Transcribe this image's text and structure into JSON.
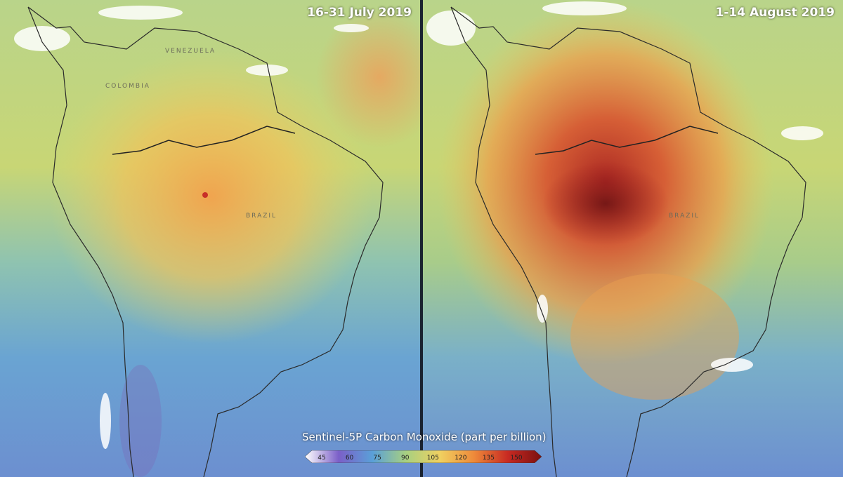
{
  "panels": [
    {
      "date_label": "16-31 July 2019",
      "country_labels": [
        "COLOMBIA",
        "VENEZUELA",
        "BRAZIL"
      ]
    },
    {
      "date_label": "1-14 August 2019",
      "country_labels": [
        "BRAZIL"
      ]
    }
  ],
  "legend": {
    "title": "Sentinel-5P Carbon Monoxide (part per billion)",
    "ticks": [
      "45",
      "60",
      "75",
      "90",
      "105",
      "120",
      "135",
      "150"
    ],
    "colors": [
      "#ffffff",
      "#7b5fc8",
      "#5aa0d8",
      "#a8d080",
      "#f0d060",
      "#ee8a3a",
      "#c82a22",
      "#7a1010"
    ]
  }
}
